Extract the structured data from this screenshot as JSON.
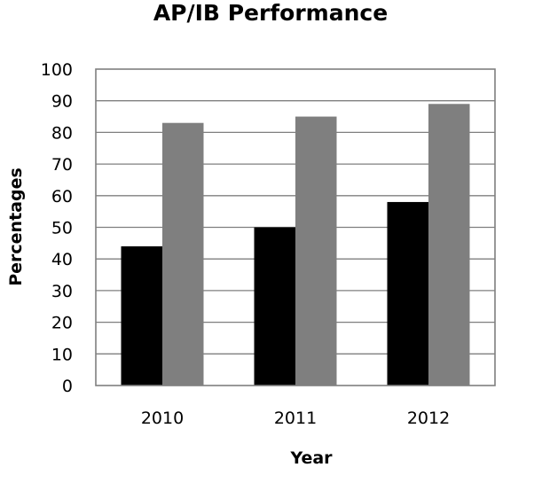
{
  "chart_data": {
    "type": "bar",
    "title": "AP/IB Performance",
    "xlabel": "Year",
    "ylabel": "Percentages",
    "categories": [
      "2010",
      "2011",
      "2012"
    ],
    "series": [
      {
        "values": [
          44,
          50,
          58
        ],
        "color": "#000000"
      },
      {
        "values": [
          83,
          85,
          89
        ],
        "color": "#7f7f7f"
      }
    ],
    "ylim": [
      0,
      100
    ],
    "yticks": [
      "0",
      "10",
      "20",
      "30",
      "40",
      "50",
      "60",
      "70",
      "80",
      "90",
      "100"
    ],
    "grid": true,
    "legend": "none"
  }
}
